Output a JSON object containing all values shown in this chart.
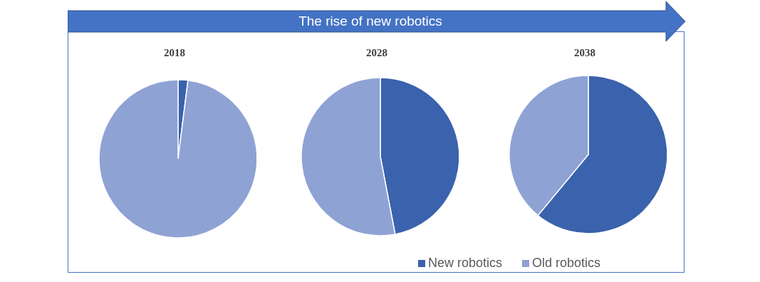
{
  "chart_data": [
    {
      "type": "other",
      "title": "The rise of new robotics"
    },
    {
      "type": "pie",
      "title": "2018",
      "categories": [
        null,
        null
      ],
      "values": [
        2,
        98
      ],
      "colors": [
        "#3a62ad",
        "#8fa2d4"
      ],
      "legend": false
    },
    {
      "type": "pie",
      "title": "2028",
      "categories": [
        null,
        null
      ],
      "values": [
        47,
        53
      ],
      "colors": [
        "#3a62ad",
        "#8fa2d4"
      ],
      "legend": false
    },
    {
      "type": "pie",
      "title": "2038",
      "categories": [
        "New robotics",
        "Old robotics"
      ],
      "values": [
        61,
        39
      ],
      "colors": [
        "#3a62ad",
        "#8fa2d4"
      ],
      "legend": "bottom left"
    }
  ]
}
